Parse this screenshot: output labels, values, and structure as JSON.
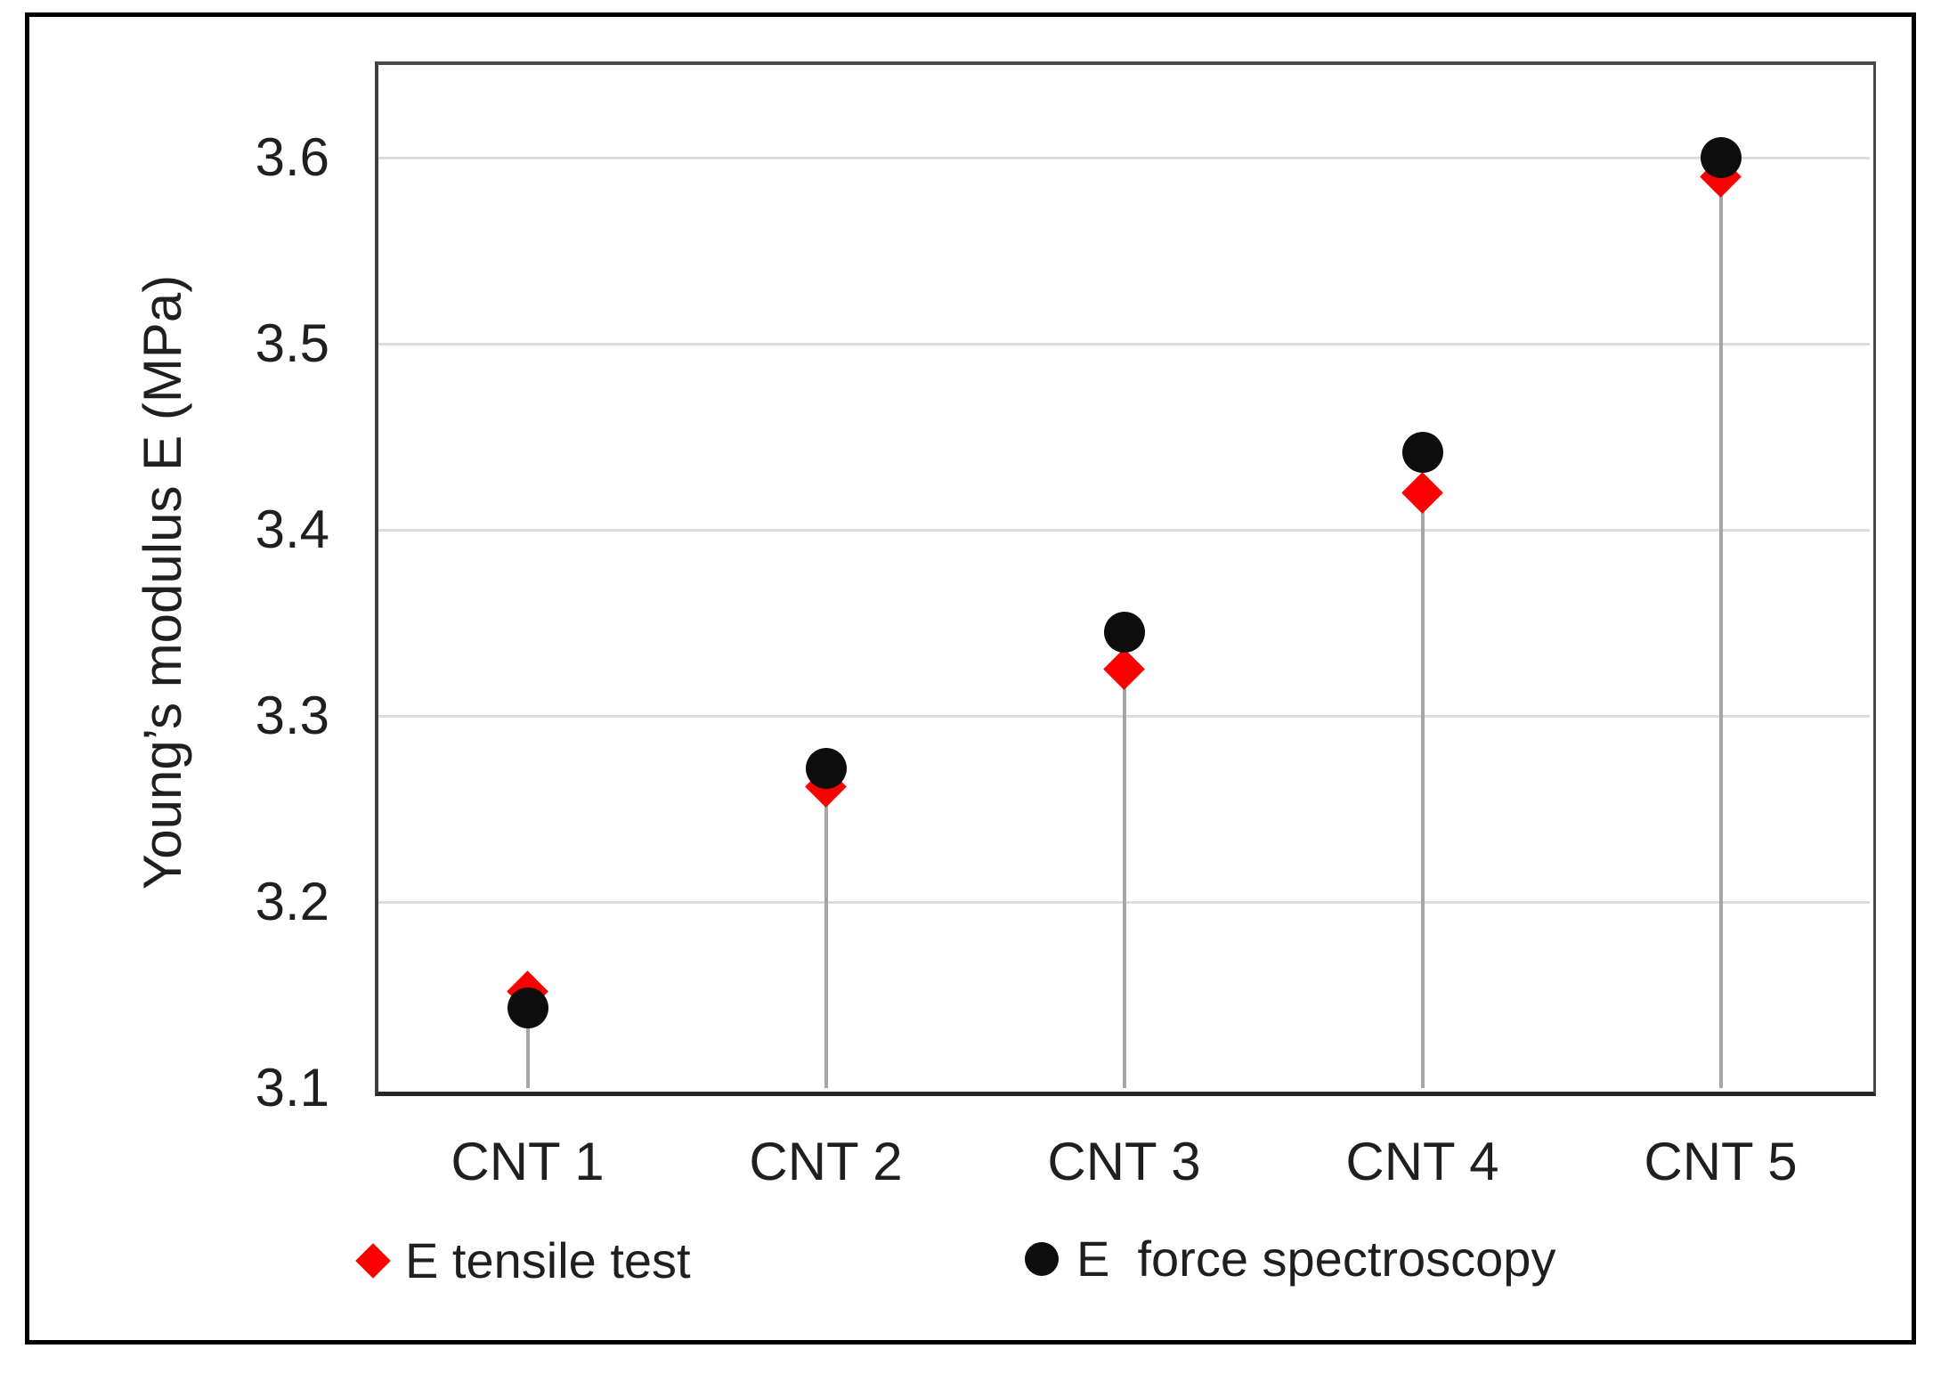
{
  "chart_data": {
    "type": "scatter",
    "title": "",
    "ylabel": "Young’s modulus  E (MPa)",
    "xlabel": "",
    "categories": [
      "CNT 1",
      "CNT 2",
      "CNT 3",
      "CNT 4",
      "CNT 5"
    ],
    "series": [
      {
        "name": "E tensile test",
        "marker": "diamond",
        "color": "#fb0000",
        "values": [
          3.152,
          3.262,
          3.325,
          3.42,
          3.59
        ]
      },
      {
        "name": "E  force spectroscopy",
        "marker": "circle",
        "color": "#0d0d0d",
        "values": [
          3.143,
          3.272,
          3.345,
          3.442,
          3.6
        ]
      }
    ],
    "yticks": [
      3.1,
      3.2,
      3.3,
      3.4,
      3.5,
      3.6
    ],
    "ytick_format_decimals": 1,
    "ylim": [
      3.1,
      3.65
    ],
    "grid": true,
    "gridline_color": "#dcdcdc",
    "stem_lines": true,
    "stem_color": "#a6a6a6",
    "legend_position": "bottom",
    "text_color": "#1f1f1f"
  }
}
